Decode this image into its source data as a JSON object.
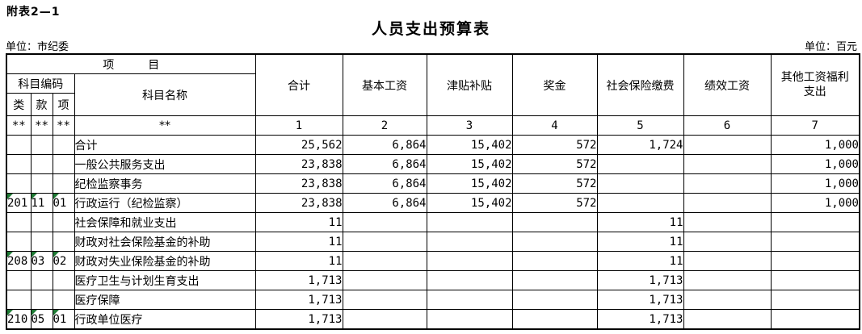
{
  "page": {
    "doc_label": "附表2—1",
    "title": "人员支出预算表",
    "unit_left": "单位：市纪委",
    "unit_right": "单位：百元"
  },
  "colors": {
    "border": "#000000",
    "background": "#ffffff",
    "error_triangle": "#1e7b34"
  },
  "table": {
    "header": {
      "project_label": "项　　　目",
      "code_group_label": "科目编码",
      "code_columns": [
        "类",
        "款",
        "项"
      ],
      "subject_name_label": "科目名称",
      "value_columns": [
        "合计",
        "基本工资",
        "津贴补贴",
        "奖金",
        "社会保险缴费",
        "绩效工资",
        "其他工资福利支出"
      ]
    },
    "index_row": {
      "code": [
        "**",
        "**",
        "**"
      ],
      "name": "**",
      "values": [
        "1",
        "2",
        "3",
        "4",
        "5",
        "6",
        "7"
      ]
    },
    "rows": [
      {
        "code": [
          "",
          "",
          ""
        ],
        "code_flags": false,
        "indent": 0,
        "name": "合计",
        "values": [
          "25,562",
          "6,864",
          "15,402",
          "572",
          "1,724",
          "",
          "1,000"
        ]
      },
      {
        "code": [
          "",
          "",
          ""
        ],
        "code_flags": false,
        "indent": 0,
        "name": "一般公共服务支出",
        "values": [
          "23,838",
          "6,864",
          "15,402",
          "572",
          "",
          "",
          "1,000"
        ]
      },
      {
        "code": [
          "",
          "",
          ""
        ],
        "code_flags": false,
        "indent": 1,
        "name": "纪检监察事务",
        "values": [
          "23,838",
          "6,864",
          "15,402",
          "572",
          "",
          "",
          "1,000"
        ]
      },
      {
        "code": [
          "201",
          "11",
          "01"
        ],
        "code_flags": true,
        "indent": 2,
        "name": "行政运行（纪检监察）",
        "values": [
          "23,838",
          "6,864",
          "15,402",
          "572",
          "",
          "",
          "1,000"
        ]
      },
      {
        "code": [
          "",
          "",
          ""
        ],
        "code_flags": false,
        "indent": 0,
        "name": "社会保障和就业支出",
        "values": [
          "11",
          "",
          "",
          "",
          "11",
          "",
          ""
        ]
      },
      {
        "code": [
          "",
          "",
          ""
        ],
        "code_flags": false,
        "indent": 1,
        "name": "财政对社会保险基金的补助",
        "values": [
          "11",
          "",
          "",
          "",
          "11",
          "",
          ""
        ]
      },
      {
        "code": [
          "208",
          "03",
          "02"
        ],
        "code_flags": true,
        "indent": 2,
        "name": "财政对失业保险基金的补助",
        "values": [
          "11",
          "",
          "",
          "",
          "11",
          "",
          ""
        ]
      },
      {
        "code": [
          "",
          "",
          ""
        ],
        "code_flags": false,
        "indent": 0,
        "name": "医疗卫生与计划生育支出",
        "values": [
          "1,713",
          "",
          "",
          "",
          "1,713",
          "",
          ""
        ]
      },
      {
        "code": [
          "",
          "",
          ""
        ],
        "code_flags": false,
        "indent": 1,
        "name": "医疗保障",
        "values": [
          "1,713",
          "",
          "",
          "",
          "1,713",
          "",
          ""
        ]
      },
      {
        "code": [
          "210",
          "05",
          "01"
        ],
        "code_flags": true,
        "indent": 2,
        "name": "行政单位医疗",
        "values": [
          "1,713",
          "",
          "",
          "",
          "1,713",
          "",
          ""
        ]
      }
    ]
  }
}
